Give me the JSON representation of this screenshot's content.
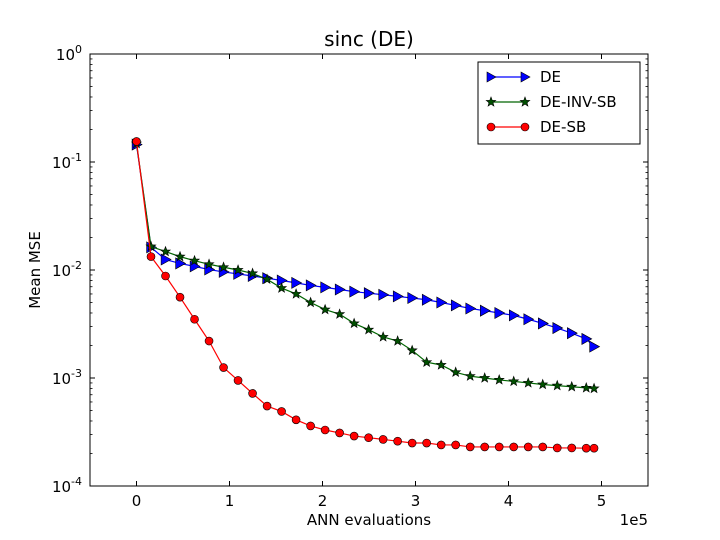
{
  "chart_data": {
    "type": "line",
    "title": "sinc (DE)",
    "xlabel": "ANN evaluations",
    "ylabel": "Mean MSE",
    "x_offset_label": "1e5",
    "x_scale": "linear",
    "y_scale": "log",
    "xlim": [
      -50000,
      550000
    ],
    "ylim": [
      0.0001,
      1
    ],
    "x_ticks": [
      0,
      100000,
      200000,
      300000,
      400000,
      500000
    ],
    "x_tick_labels": [
      "0",
      "1",
      "2",
      "3",
      "4",
      "5"
    ],
    "y_ticks": [
      0.0001,
      0.001,
      0.01,
      0.1,
      1
    ],
    "y_tick_labels": [
      {
        "base": "10",
        "exp": "-4"
      },
      {
        "base": "10",
        "exp": "-3"
      },
      {
        "base": "10",
        "exp": "-2"
      },
      {
        "base": "10",
        "exp": "-1"
      },
      {
        "base": "10",
        "exp": "0"
      }
    ],
    "grid": false,
    "legend_position": "top-right",
    "x": [
      0,
      15600,
      31200,
      46800,
      62400,
      78000,
      93600,
      109200,
      124800,
      140400,
      156000,
      171600,
      187200,
      202800,
      218400,
      234000,
      249600,
      265200,
      280800,
      296400,
      312000,
      327600,
      343200,
      358800,
      374400,
      390000,
      405600,
      421200,
      436800,
      452400,
      468000,
      483600,
      492000
    ],
    "series": [
      {
        "name": "DE",
        "color": "#0000ff",
        "marker": "triangle-right",
        "values": [
          0.145,
          0.0162,
          0.0125,
          0.0115,
          0.0108,
          0.0101,
          0.0096,
          0.0092,
          0.0088,
          0.0084,
          0.008,
          0.0076,
          0.0072,
          0.0069,
          0.0066,
          0.0063,
          0.0061,
          0.0059,
          0.0057,
          0.0055,
          0.0053,
          0.005,
          0.0047,
          0.0044,
          0.0042,
          0.004,
          0.0038,
          0.0035,
          0.0032,
          0.0029,
          0.0026,
          0.0023,
          0.00195
        ]
      },
      {
        "name": "DE-INV-SB",
        "color": "#006400",
        "marker": "star",
        "values": [
          0.148,
          0.0165,
          0.0148,
          0.0133,
          0.0122,
          0.0113,
          0.0106,
          0.01,
          0.0093,
          0.0082,
          0.0068,
          0.006,
          0.005,
          0.0043,
          0.0039,
          0.0032,
          0.0028,
          0.0024,
          0.0022,
          0.0018,
          0.0014,
          0.00132,
          0.00113,
          0.00104,
          0.001,
          0.00096,
          0.00093,
          0.0009,
          0.00087,
          0.00085,
          0.00083,
          0.00081,
          0.0008
        ]
      },
      {
        "name": "DE-SB",
        "color": "#ff0000",
        "marker": "circle",
        "values": [
          0.155,
          0.0133,
          0.0088,
          0.0056,
          0.0035,
          0.0022,
          0.00125,
          0.00095,
          0.00072,
          0.00055,
          0.00049,
          0.00041,
          0.00036,
          0.00033,
          0.00031,
          0.00029,
          0.00028,
          0.00027,
          0.00026,
          0.00025,
          0.00025,
          0.00024,
          0.00024,
          0.00023,
          0.00023,
          0.00023,
          0.00023,
          0.00023,
          0.00023,
          0.000225,
          0.000225,
          0.000224,
          0.000224
        ]
      }
    ]
  }
}
